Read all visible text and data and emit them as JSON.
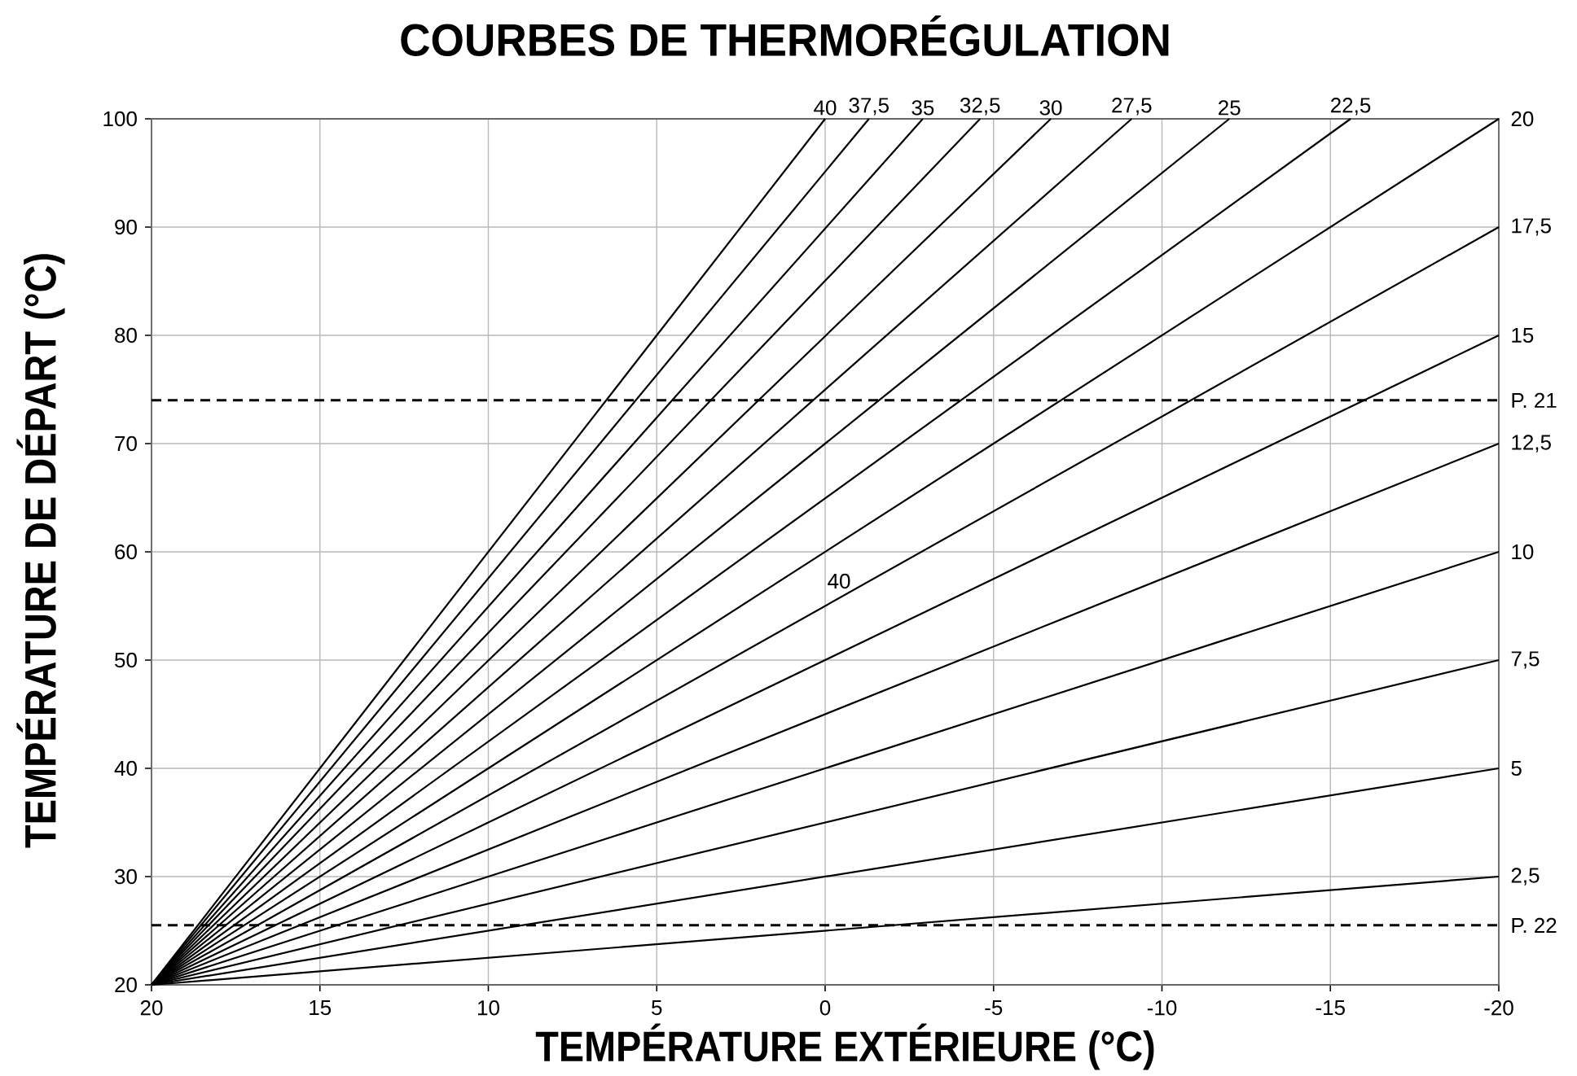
{
  "chart_data": {
    "type": "line",
    "title": "COURBES DE THERMORÉGULATION",
    "xlabel": "TEMPÉRATURE EXTÉRIEURE (°C)",
    "ylabel": "TEMPÉRATURE DE DÉPART (°C)",
    "xlim": [
      20,
      -20
    ],
    "ylim": [
      20,
      100
    ],
    "xticks": [
      20,
      15,
      10,
      5,
      0,
      -5,
      -10,
      -15,
      -20
    ],
    "yticks": [
      20,
      30,
      40,
      50,
      60,
      70,
      80,
      90,
      100
    ],
    "grid": true,
    "marker": "none",
    "line_style": "solid",
    "series": [
      {
        "name": "40",
        "color": "#000000",
        "x": [
          20,
          0
        ],
        "values": [
          20,
          100
        ]
      },
      {
        "name": "37,5",
        "color": "#000000",
        "x": [
          20,
          -1.3
        ],
        "values": [
          20,
          100
        ]
      },
      {
        "name": "35",
        "color": "#000000",
        "x": [
          20,
          -2.9
        ],
        "values": [
          20,
          100
        ]
      },
      {
        "name": "32,5",
        "color": "#000000",
        "x": [
          20,
          -4.6
        ],
        "values": [
          20,
          100
        ]
      },
      {
        "name": "30",
        "color": "#000000",
        "x": [
          20,
          -6.7
        ],
        "values": [
          20,
          100
        ]
      },
      {
        "name": "27,5",
        "color": "#000000",
        "x": [
          20,
          -9.1
        ],
        "values": [
          20,
          100
        ]
      },
      {
        "name": "25",
        "color": "#000000",
        "x": [
          20,
          -12
        ],
        "values": [
          20,
          100
        ]
      },
      {
        "name": "22,5",
        "color": "#000000",
        "x": [
          20,
          -15.6
        ],
        "values": [
          20,
          100
        ]
      },
      {
        "name": "20",
        "color": "#000000",
        "x": [
          20,
          -20
        ],
        "values": [
          20,
          100
        ]
      },
      {
        "name": "17,5",
        "color": "#000000",
        "x": [
          20,
          -20
        ],
        "values": [
          20,
          90
        ]
      },
      {
        "name": "15",
        "color": "#000000",
        "x": [
          20,
          -20
        ],
        "values": [
          20,
          80
        ]
      },
      {
        "name": "12,5",
        "color": "#000000",
        "x": [
          20,
          -20
        ],
        "values": [
          20,
          70
        ]
      },
      {
        "name": "10",
        "color": "#000000",
        "x": [
          20,
          -20
        ],
        "values": [
          20,
          60
        ]
      },
      {
        "name": "7,5",
        "color": "#000000",
        "x": [
          20,
          -20
        ],
        "values": [
          20,
          50
        ]
      },
      {
        "name": "5",
        "color": "#000000",
        "x": [
          20,
          -20
        ],
        "values": [
          20,
          40
        ]
      },
      {
        "name": "2,5",
        "color": "#000000",
        "x": [
          20,
          -20
        ],
        "values": [
          20,
          30
        ]
      }
    ],
    "ref_lines": [
      {
        "axis": "y",
        "value": 74,
        "label": "P. 21",
        "color": "#000000",
        "line_style": "dashed"
      },
      {
        "axis": "y",
        "value": 25.5,
        "label": "P. 22",
        "color": "#000000",
        "line_style": "dashed"
      }
    ],
    "annotations": [
      "40"
    ]
  }
}
